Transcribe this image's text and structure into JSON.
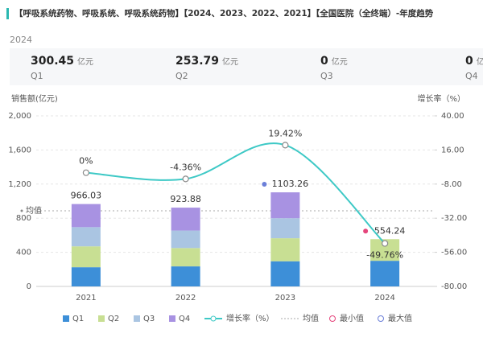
{
  "header": {
    "title": "【呼吸系统药物、呼吸系统、呼吸系统药物】【2024、2023、2022、2021】【全国医院（全终端）-年度趋势",
    "year": "2024"
  },
  "kpis": [
    {
      "value": 300.45,
      "unit": "亿元",
      "label": "Q1"
    },
    {
      "value": 253.79,
      "unit": "亿元",
      "label": "Q2"
    },
    {
      "value": 0,
      "unit": "亿元",
      "label": "Q3"
    },
    {
      "value": 0,
      "unit": "亿元",
      "label": "Q4"
    }
  ],
  "chart_data": {
    "type": "bar",
    "ylabel": "销售额(亿元)",
    "y2label": "增长率（%）",
    "categories": [
      "2021",
      "2022",
      "2023",
      "2024"
    ],
    "series": [
      {
        "name": "Q1",
        "color": "#3d8fd8",
        "values": [
          225,
          235,
          295,
          300.45
        ]
      },
      {
        "name": "Q2",
        "color": "#c8df93",
        "values": [
          245,
          215,
          270,
          253.79
        ]
      },
      {
        "name": "Q3",
        "color": "#aac5e2",
        "values": [
          225,
          205,
          235,
          0
        ]
      },
      {
        "name": "Q4",
        "color": "#a892e2",
        "values": [
          271.03,
          268.88,
          303.26,
          0
        ]
      }
    ],
    "totals": [
      966.03,
      923.88,
      1103.26,
      554.24
    ],
    "line": {
      "name": "增长率（%）",
      "color": "#3ec9c6",
      "axis": "y2",
      "values": [
        0,
        -4.36,
        19.42,
        -49.76
      ],
      "value_labels": [
        "0%",
        "-4.36%",
        "19.42%",
        "-49.76%"
      ]
    },
    "mean": {
      "value": 886.85,
      "label": "均值"
    },
    "min_label": "最小值",
    "min_color": "#e5457c",
    "max_label": "最大值",
    "max_color": "#6b7fd8",
    "ylim": [
      0,
      2000
    ],
    "yticks": [
      0,
      400,
      800,
      {
        "value": 1200,
        "label": "1,200"
      },
      {
        "value": 1600,
        "label": "1,600"
      },
      {
        "value": 2000,
        "label": "2,000"
      }
    ],
    "y2lim": [
      -80,
      40
    ],
    "y2ticks": [
      {
        "value": -80,
        "label": "-80.00"
      },
      {
        "value": -56,
        "label": "-56.00"
      },
      {
        "value": -32,
        "label": "-32.00"
      },
      {
        "value": -8,
        "label": "-8.00"
      },
      {
        "value": 16,
        "label": "16.00"
      },
      {
        "value": 40,
        "label": "40.00"
      }
    ],
    "grid": true
  }
}
